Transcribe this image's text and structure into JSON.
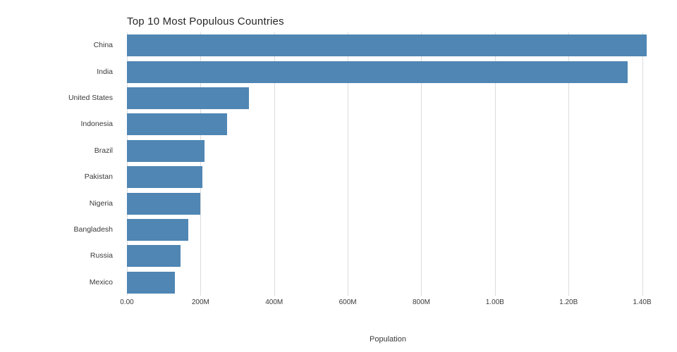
{
  "chart_data": {
    "type": "bar",
    "orientation": "horizontal",
    "title": "Top 10 Most Populous Countries",
    "xlabel": "Population",
    "ylabel": "",
    "categories": [
      "China",
      "India",
      "United States",
      "Indonesia",
      "Brazil",
      "Pakistan",
      "Nigeria",
      "Bangladesh",
      "Russia",
      "Mexico"
    ],
    "values_millions": [
      1412,
      1360,
      331,
      273,
      211,
      205,
      200,
      166,
      146,
      131
    ],
    "x_ticks": [
      {
        "label": "0.00",
        "value": 0
      },
      {
        "label": "200M",
        "value": 200
      },
      {
        "label": "400M",
        "value": 400
      },
      {
        "label": "600M",
        "value": 600
      },
      {
        "label": "800M",
        "value": 800
      },
      {
        "label": "1.00B",
        "value": 1000
      },
      {
        "label": "1.20B",
        "value": 1200
      },
      {
        "label": "1.40B",
        "value": 1400
      }
    ],
    "xlim": [
      0,
      1418
    ],
    "grid": true,
    "legend": "none",
    "bar_color": "#4f86b3",
    "gridline_color": "#dcdcdc"
  }
}
